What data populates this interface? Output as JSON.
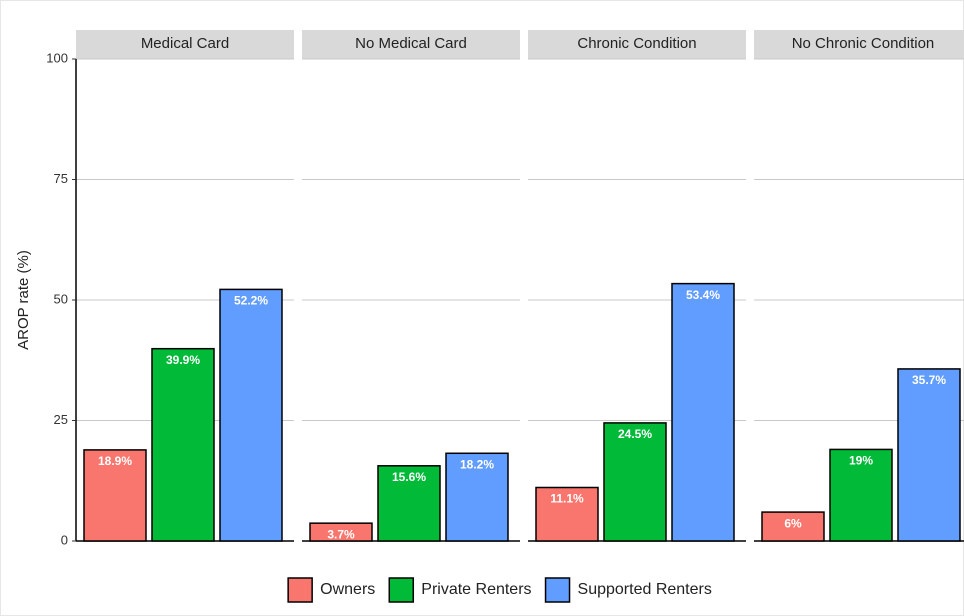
{
  "chart_data": {
    "type": "bar",
    "y_label": "AROP rate (%)",
    "categories": [
      "Medical Card",
      "No Medical Card",
      "Chronic Condition",
      "No Chronic Condition"
    ],
    "series": [
      {
        "name": "Owners",
        "color": "#f8766d",
        "values": [
          18.9,
          3.7,
          11.1,
          6
        ],
        "value_labels": [
          "18.9%",
          "3.7%",
          "11.1%",
          "6%"
        ]
      },
      {
        "name": "Private Renters",
        "color": "#00ba38",
        "values": [
          39.9,
          15.6,
          24.5,
          19
        ],
        "value_labels": [
          "39.9%",
          "15.6%",
          "24.5%",
          "19%"
        ]
      },
      {
        "name": "Supported Renters",
        "color": "#619cff",
        "values": [
          52.2,
          18.2,
          53.4,
          35.7
        ],
        "value_labels": [
          "52.2%",
          "18.2%",
          "53.4%",
          "35.7%"
        ]
      }
    ],
    "ylim": [
      0,
      100
    ],
    "yticks": [
      0,
      25,
      50,
      75,
      100
    ],
    "grid": true,
    "legend": "bottom"
  }
}
